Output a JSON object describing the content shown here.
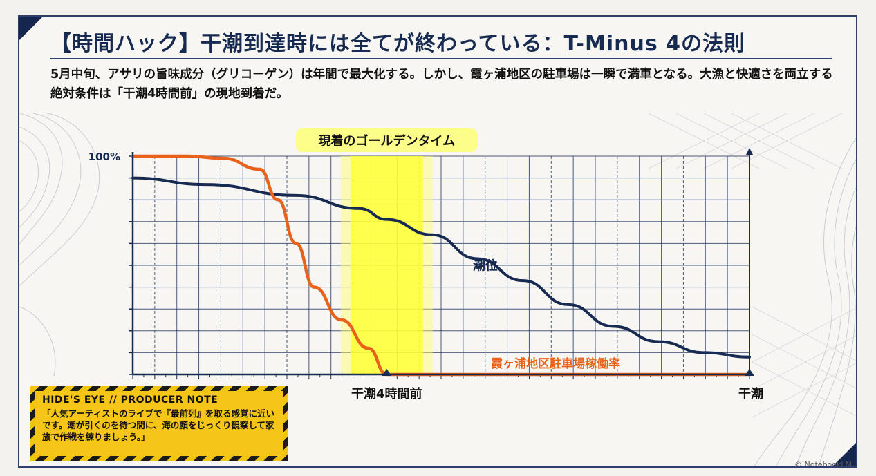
{
  "title": "【時間ハック】干潮到達時には全てが終わっている：T-Minus 4の法則",
  "intro": "5月中旬、アサリの旨味成分（グリコーゲン）は年間で最大化する。しかし、霞ヶ浦地区の駐車場は一瞬で満車となる。大漁と快適さを両立する絶対条件は「干潮4時間前」の現地到着だ。",
  "note": {
    "heading": "HIDE'S EYE // PRODUCER NOTE",
    "body": "「人気アーティストのライブで『最前列』を取る感覚に近いです。潮が引くのを待つ間に、海の顔をじっくり観察して家族で作戦を練りましょう。」"
  },
  "credit": "© NotebookLM",
  "colors": {
    "navy": "#172a52",
    "orange": "#e8621c",
    "highlight": "#ffff33",
    "grid": "#2d3f6b"
  },
  "chart_data": {
    "type": "line",
    "x_unit": "hours relative to low tide",
    "xlim": [
      -6.8,
      0
    ],
    "ylim": [
      0,
      100
    ],
    "y_tick_label": "100%",
    "x_ticks": [
      {
        "x": -4,
        "label": "干潮4時間前"
      },
      {
        "x": 0,
        "label": "干潮"
      }
    ],
    "highlight": {
      "label": "現着のゴールデンタイム",
      "x_center": -4,
      "x_range": [
        -4.4,
        -3.6
      ]
    },
    "series": [
      {
        "name": "潮位",
        "color": "#172a52",
        "x": [
          -6.8,
          -6.0,
          -5.0,
          -4.3,
          -4.0,
          -3.5,
          -3.0,
          -2.5,
          -2.0,
          -1.5,
          -1.0,
          -0.5,
          0
        ],
        "y": [
          90,
          87,
          82,
          76,
          71,
          64,
          53,
          43,
          32,
          22,
          15,
          10,
          8
        ]
      },
      {
        "name": "霞ヶ浦地区駐車場稼働率",
        "color": "#e8621c",
        "x": [
          -6.8,
          -6.2,
          -5.8,
          -5.4,
          -5.2,
          -5.0,
          -4.8,
          -4.5,
          -4.2,
          -4.0,
          -3.0,
          -2.0,
          -1.0,
          0
        ],
        "y": [
          100,
          100,
          99,
          94,
          80,
          60,
          40,
          25,
          12,
          0,
          0,
          0,
          0,
          0
        ]
      }
    ]
  }
}
